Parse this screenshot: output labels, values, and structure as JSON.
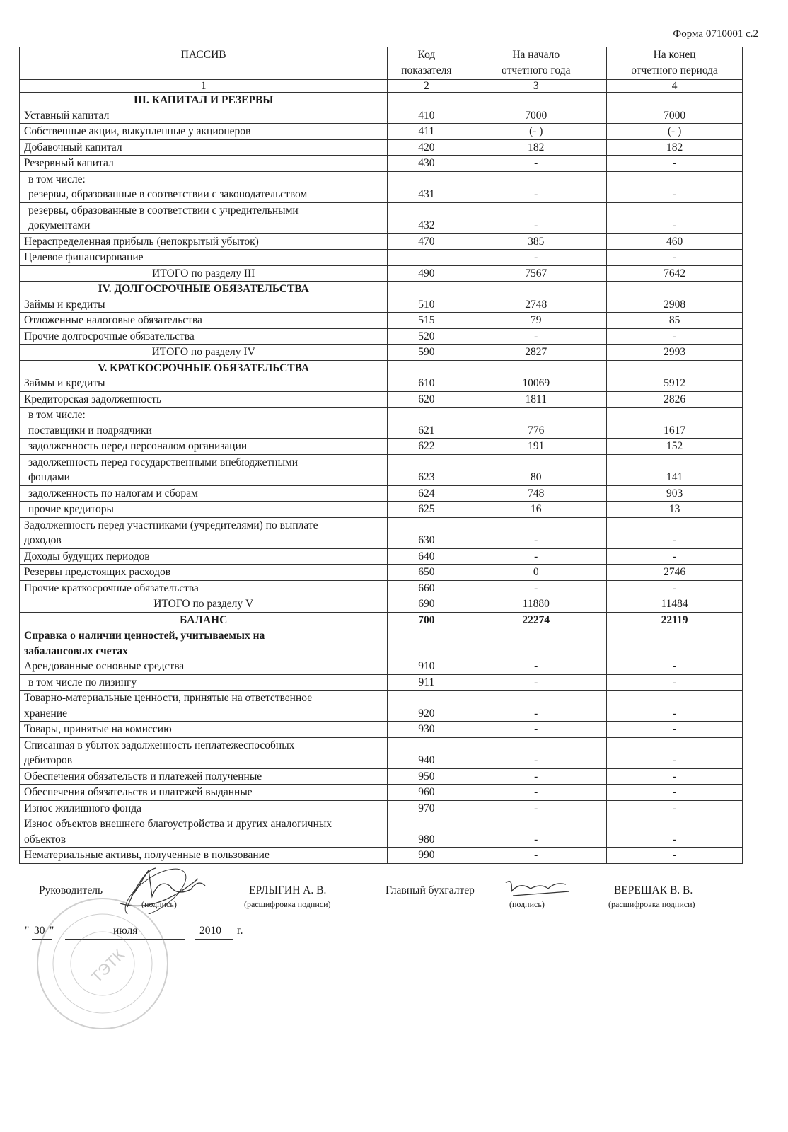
{
  "form_number": "Форма 0710001 с.2",
  "header": {
    "col1": "ПАССИВ",
    "col2": "Код\nпоказателя",
    "col3": "На начало\nотчетного года",
    "col4": "На конец\nотчетного периода"
  },
  "index_row": [
    "1",
    "2",
    "3",
    "4"
  ],
  "rows": [
    {
      "section": "III. КАПИТАЛ И РЕЗЕРВЫ",
      "label": "Уставный капитал",
      "code": "410",
      "start": "7000",
      "end": "7000"
    },
    {
      "label": "Собственные акции, выкупленные у акционеров",
      "code": "411",
      "start": "(- )",
      "end": "(- )"
    },
    {
      "label": "Добавочный капитал",
      "code": "420",
      "start": "182",
      "end": "182"
    },
    {
      "label": "Резервный капитал",
      "code": "430",
      "start": "-",
      "end": "-"
    },
    {
      "label": "в том числе:\nрезервы, образованные в соответствии с законодательством",
      "code": "431",
      "start": "-",
      "end": "-",
      "indent": true
    },
    {
      "label": "резервы, образованные в соответствии с учредительными\nдокументами",
      "code": "432",
      "start": "-",
      "end": "-",
      "indent": true
    },
    {
      "label": "Нераспределенная прибыль (непокрытый убыток)",
      "code": "470",
      "start": "385",
      "end": "460"
    },
    {
      "label": "Целевое финансирование",
      "code": "",
      "start": "-",
      "end": "-"
    },
    {
      "label": "ИТОГО по разделу III",
      "code": "490",
      "start": "7567",
      "end": "7642",
      "total": true
    },
    {
      "section": "IV. ДОЛГОСРОЧНЫЕ ОБЯЗАТЕЛЬСТВА",
      "label": "Займы и кредиты",
      "code": "510",
      "start": "2748",
      "end": "2908"
    },
    {
      "label": "Отложенные налоговые обязательства",
      "code": "515",
      "start": "79",
      "end": "85"
    },
    {
      "label": "Прочие долгосрочные обязательства",
      "code": "520",
      "start": "-",
      "end": "-"
    },
    {
      "label": "ИТОГО по разделу IV",
      "code": "590",
      "start": "2827",
      "end": "2993",
      "total": true
    },
    {
      "section": "V. КРАТКОСРОЧНЫЕ ОБЯЗАТЕЛЬСТВА",
      "label": "Займы и кредиты",
      "code": "610",
      "start": "10069",
      "end": "5912"
    },
    {
      "label": "Кредиторская задолженность",
      "code": "620",
      "start": "1811",
      "end": "2826"
    },
    {
      "label": "в том числе:\nпоставщики и подрядчики",
      "code": "621",
      "start": "776",
      "end": "1617",
      "indent": true
    },
    {
      "label": "задолженность перед персоналом организации",
      "code": "622",
      "start": "191",
      "end": "152",
      "indent": true
    },
    {
      "label": "задолженность перед государственными внебюджетными\nфондами",
      "code": "623",
      "start": "80",
      "end": "141",
      "indent": true
    },
    {
      "label": "задолженность по налогам и сборам",
      "code": "624",
      "start": "748",
      "end": "903",
      "indent": true
    },
    {
      "label": "прочие кредиторы",
      "code": "625",
      "start": "16",
      "end": "13",
      "indent": true
    },
    {
      "label": "Задолженность перед участниками (учредителями) по выплате\nдоходов",
      "code": "630",
      "start": "-",
      "end": "-"
    },
    {
      "label": "Доходы будущих периодов",
      "code": "640",
      "start": "-",
      "end": "-"
    },
    {
      "label": "Резервы предстоящих расходов",
      "code": "650",
      "start": "0",
      "end": "2746"
    },
    {
      "label": "Прочие краткосрочные обязательства",
      "code": "660",
      "start": "-",
      "end": "-"
    },
    {
      "label": "ИТОГО по разделу V",
      "code": "690",
      "start": "11880",
      "end": "11484",
      "total": true
    },
    {
      "label": "БАЛАНС",
      "code": "700",
      "start": "22274",
      "end": "22119",
      "total": true,
      "bold": true
    },
    {
      "subheading": "Справка о наличии ценностей, учитываемых на\nзабалансовых счетах",
      "label": "Арендованные основные средства",
      "code": "910",
      "start": "-",
      "end": "-"
    },
    {
      "label": "в том числе по лизингу",
      "code": "911",
      "start": "-",
      "end": "-",
      "indent": true
    },
    {
      "label": "Товарно-материальные ценности, принятые на ответственное\nхранение",
      "code": "920",
      "start": "-",
      "end": "-"
    },
    {
      "label": "Товары, принятые на комиссию",
      "code": "930",
      "start": "-",
      "end": "-"
    },
    {
      "label": "Списанная в убыток задолженность неплатежеспособных\nдебиторов",
      "code": "940",
      "start": "-",
      "end": "-"
    },
    {
      "label": "Обеспечения обязательств и платежей полученные",
      "code": "950",
      "start": "-",
      "end": "-"
    },
    {
      "label": "Обеспечения обязательств и платежей выданные",
      "code": "960",
      "start": "-",
      "end": "-"
    },
    {
      "label": "Износ жилищного фонда",
      "code": "970",
      "start": "-",
      "end": "-"
    },
    {
      "label": "Износ объектов внешнего благоустройства и других аналогичных\nобъектов",
      "code": "980",
      "start": "-",
      "end": "-"
    },
    {
      "label": "Нематериальные активы, полученные в пользование",
      "code": "990",
      "start": "-",
      "end": "-"
    }
  ],
  "signatures": {
    "head_label": "Руководитель",
    "head_name": "ЕРЛЫГИН А. В.",
    "accountant_label": "Главный бухгалтер",
    "accountant_name": "ВЕРЕЩАК В. В.",
    "signature_caption": "(подпись)",
    "decode_caption": "(расшифровка подписи)"
  },
  "date": {
    "quote_open": "\"",
    "day": "30",
    "quote_close": "\"",
    "month": "июля",
    "year": "2010",
    "suffix": "г."
  },
  "stamp": {
    "text": "ТЭТК"
  }
}
